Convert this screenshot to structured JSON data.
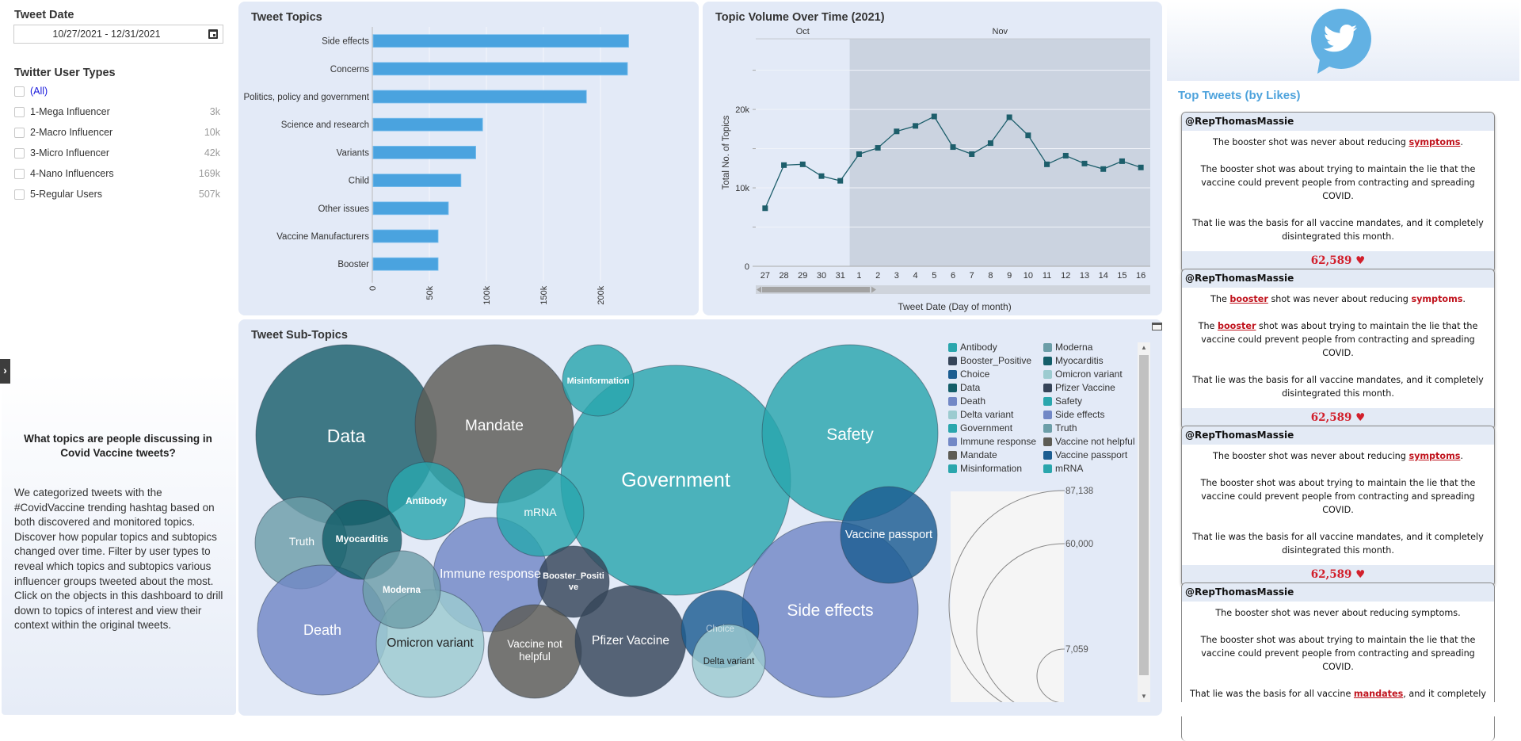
{
  "filters": {
    "tweet_date": {
      "label": "Tweet Date",
      "value": "10/27/2021  -  12/31/2021"
    },
    "user_types": {
      "label": "Twitter User Types",
      "items": [
        {
          "label": "(All)",
          "count": ""
        },
        {
          "label": "1-Mega Influencer",
          "count": "3k"
        },
        {
          "label": "2-Macro Influencer",
          "count": "10k"
        },
        {
          "label": "3-Micro Influencer",
          "count": "42k"
        },
        {
          "label": "4-Nano Influencers",
          "count": "169k"
        },
        {
          "label": "5-Regular Users",
          "count": "507k"
        }
      ]
    }
  },
  "sidebar": {
    "expand_icon": "chevron-right",
    "question": "What topics are people discussing in Covid Vaccine tweets?",
    "description": "We categorized tweets with the #CovidVaccine trending hashtag based on both discovered and monitored topics. Discover how popular topics and subtopics changed over time. Filter by user types to reveal which topics and subtopics various influencer groups tweeted about the most. Click on the objects in this dashboard to drill down to topics of interest and view their context within the original tweets."
  },
  "panels": {
    "topics_title": "Tweet Topics",
    "volume_title": "Topic Volume Over Time (2021)",
    "subtopics_title": "Tweet Sub-Topics",
    "top_tweets_title": "Top Tweets (by Likes)"
  },
  "chart_data": [
    {
      "type": "bar",
      "orientation": "horizontal",
      "title": "Tweet Topics",
      "categories": [
        "Side effects",
        "Concerns",
        "Politics, policy and government",
        "Science and research",
        "Variants",
        "Child",
        "Other issues",
        "Vaccine Manufacturers",
        "Booster"
      ],
      "values": [
        224000,
        223000,
        187000,
        96000,
        90000,
        77000,
        66000,
        57000,
        57000
      ],
      "xlim": [
        0,
        230000
      ],
      "xticks": [
        "0",
        "50k",
        "100k",
        "150k",
        "200k"
      ],
      "xtick_values": [
        0,
        50000,
        100000,
        150000,
        200000
      ],
      "color": "#4aa3df",
      "grid": true
    },
    {
      "type": "line",
      "title": "Topic Volume Over Time (2021)",
      "xlabel": "Tweet Date (Day of month)",
      "ylabel": "Total No. of Topics",
      "months": [
        {
          "label": "Oct",
          "days": 5
        },
        {
          "label": "Nov",
          "days": 16
        }
      ],
      "x": [
        "27",
        "28",
        "29",
        "30",
        "31",
        "1",
        "2",
        "3",
        "4",
        "5",
        "6",
        "7",
        "8",
        "9",
        "10",
        "11",
        "12",
        "13",
        "14",
        "15",
        "16"
      ],
      "values": [
        7400,
        12900,
        13000,
        11500,
        10900,
        14300,
        15100,
        17200,
        17900,
        19100,
        15200,
        14300,
        15700,
        19000,
        16700,
        13000,
        14100,
        13100,
        12400,
        13400,
        12600
      ],
      "ylim": [
        0,
        29000
      ],
      "yticks": [
        "0",
        "10k",
        "20k"
      ],
      "ytick_values": [
        0,
        10000,
        20000
      ],
      "minor_gridlines": [
        5000,
        15000,
        25000
      ],
      "color": "#1d5e6b",
      "highlight_start_index": 5
    },
    {
      "type": "bubble",
      "title": "Tweet Sub-Topics",
      "size_legend": {
        "values": [
          87138,
          60000,
          7059
        ],
        "labels": [
          "87,138",
          "60,000",
          "7,059"
        ]
      },
      "bubbles": [
        {
          "name": "Data",
          "color": "#1a5f6b"
        },
        {
          "name": "Mandate",
          "color": "#5d5c55"
        },
        {
          "name": "Misinformation",
          "color": "#2aa6ad"
        },
        {
          "name": "Government",
          "color": "#2aa6ad"
        },
        {
          "name": "Safety",
          "color": "#2aa6ad"
        },
        {
          "name": "Antibody",
          "color": "#2aa6ad"
        },
        {
          "name": "mRNA",
          "color": "#2aa6ad"
        },
        {
          "name": "Truth",
          "color": "#6c9ea8"
        },
        {
          "name": "Myocarditis",
          "color": "#145e69"
        },
        {
          "name": "Immune response",
          "color": "#7288c6"
        },
        {
          "name": "Moderna",
          "color": "#6c9ea8"
        },
        {
          "name": "Booster_Positive",
          "color": "#364559"
        },
        {
          "name": "Vaccine passport",
          "color": "#1c5d91"
        },
        {
          "name": "Death",
          "color": "#7288c6"
        },
        {
          "name": "Omicron variant",
          "color": "#9ccbd0"
        },
        {
          "name": "Vaccine not helpful",
          "color": "#5d5c55"
        },
        {
          "name": "Pfizer Vaccine",
          "color": "#364559"
        },
        {
          "name": "Choice",
          "color": "#1c5d91"
        },
        {
          "name": "Delta variant",
          "color": "#9ccbd0"
        },
        {
          "name": "Side effects",
          "color": "#7288c6"
        }
      ]
    }
  ],
  "bubble_labels": {
    "data": "Data",
    "mandate": "Mandate",
    "misinformation": "Misinformation",
    "government": "Government",
    "safety": "Safety",
    "antibody": "Antibody",
    "mrna": "mRNA",
    "truth": "Truth",
    "myocarditis": "Myocarditis",
    "immune": "Immune response",
    "moderna": "Moderna",
    "booster1": "Booster_Positi",
    "booster2": "ve",
    "passport": "Vaccine passport",
    "death": "Death",
    "omicron": "Omicron variant",
    "nothelp1": "Vaccine not",
    "nothelp2": "helpful",
    "pfizer": "Pfizer Vaccine",
    "choice": "Choice",
    "delta": "Delta variant",
    "sideeffects": "Side effects"
  },
  "legend": {
    "col1": [
      {
        "label": "Antibody",
        "color": "#2aa6ad"
      },
      {
        "label": "Booster_Positive",
        "color": "#364559"
      },
      {
        "label": "Choice",
        "color": "#1c5d91"
      },
      {
        "label": "Data",
        "color": "#145e69"
      },
      {
        "label": "Death",
        "color": "#7288c6"
      },
      {
        "label": "Delta variant",
        "color": "#9ccbd0"
      },
      {
        "label": "Government",
        "color": "#2aa6ad"
      },
      {
        "label": "Immune response",
        "color": "#7288c6"
      },
      {
        "label": "Mandate",
        "color": "#5d5c55"
      },
      {
        "label": "Misinformation",
        "color": "#2aa6ad"
      }
    ],
    "col2": [
      {
        "label": "Moderna",
        "color": "#6c9ea8"
      },
      {
        "label": "Myocarditis",
        "color": "#145e69"
      },
      {
        "label": "Omicron variant",
        "color": "#9ccbd0"
      },
      {
        "label": "Pfizer Vaccine",
        "color": "#364559"
      },
      {
        "label": "Safety",
        "color": "#2aa6ad"
      },
      {
        "label": "Side effects",
        "color": "#7288c6"
      },
      {
        "label": "Truth",
        "color": "#6c9ea8"
      },
      {
        "label": "Vaccine not helpful",
        "color": "#5d5c55"
      },
      {
        "label": "Vaccine passport",
        "color": "#1c5d91"
      },
      {
        "label": "mRNA",
        "color": "#2aa6ad"
      }
    ]
  },
  "tweets": [
    {
      "handle": "@RepThomasMassie",
      "p1": [
        "The booster shot was never about reducing ",
        "symptoms",
        "."
      ],
      "p2": "The booster shot was about trying to maintain the lie that the vaccine could prevent people from contracting and spreading COVID.",
      "p3": "That lie was the basis for all vaccine mandates, and it completely disintegrated this month.",
      "likes": "62,589"
    },
    {
      "handle": "@RepThomasMassie",
      "p1": [
        "The ",
        "booster",
        " shot was never about reducing ",
        "symptoms",
        "."
      ],
      "p2": [
        "The ",
        "booster",
        " shot was about trying to maintain the lie that the vaccine could prevent people from contracting and spreading COVID."
      ],
      "p3": "That lie was the basis for all vaccine mandates, and it completely disintegrated this month.",
      "likes": "62,589"
    },
    {
      "handle": "@RepThomasMassie",
      "p1": [
        "The booster shot was never about reducing ",
        "symptoms",
        "."
      ],
      "p2": "The booster shot was about trying to maintain the lie that the vaccine could prevent people from contracting and spreading COVID.",
      "p3": "That lie was the basis for all vaccine mandates, and it completely disintegrated this month.",
      "likes": "62,589"
    },
    {
      "handle": "@RepThomasMassie",
      "p1": "The booster shot was never about reducing symptoms.",
      "p2": "The booster shot was about trying to maintain the lie that the vaccine could prevent people from contracting and spreading COVID.",
      "p3": [
        "That lie was the basis for all vaccine ",
        "mandates",
        ", and it completely disintegrated this month."
      ]
    }
  ],
  "heart_icon": "♥"
}
